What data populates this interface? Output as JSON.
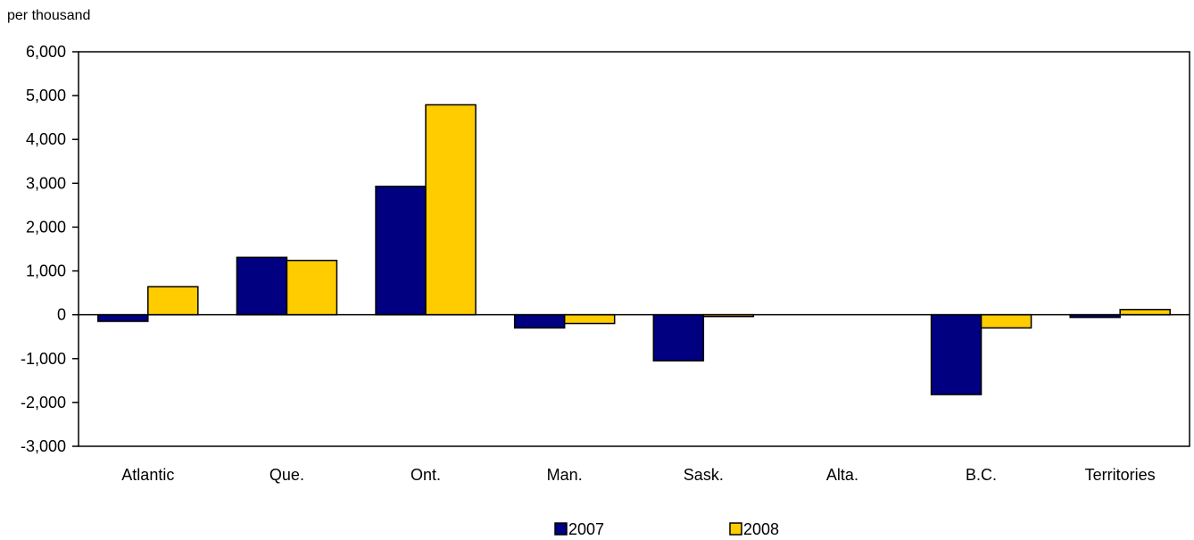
{
  "chart_data": {
    "type": "bar",
    "title": "",
    "unit_label": "per thousand",
    "xlabel": "",
    "ylabel": "",
    "categories": [
      "Atlantic",
      "Que.",
      "Ont.",
      "Man.",
      "Sask.",
      "Alta.",
      "B.C.",
      "Territories"
    ],
    "series": [
      {
        "name": "2007",
        "color": "#000080",
        "values": [
          -150,
          1310,
          2930,
          -300,
          -1050,
          0,
          -1820,
          -60
        ]
      },
      {
        "name": "2008",
        "color": "#ffcc00",
        "values": [
          640,
          1240,
          4790,
          -200,
          -40,
          0,
          -300,
          120
        ]
      }
    ],
    "ylim": [
      -3000,
      6000
    ],
    "yticks": [
      6000,
      5000,
      4000,
      3000,
      2000,
      1000,
      0,
      -1000,
      -2000,
      -3000
    ],
    "ytick_labels": [
      "6,000",
      "5,000",
      "4,000",
      "3,000",
      "2,000",
      "1,000",
      "0",
      "-1,000",
      "-2,000",
      "-3,000"
    ],
    "grid": false,
    "legend_position": "bottom"
  }
}
